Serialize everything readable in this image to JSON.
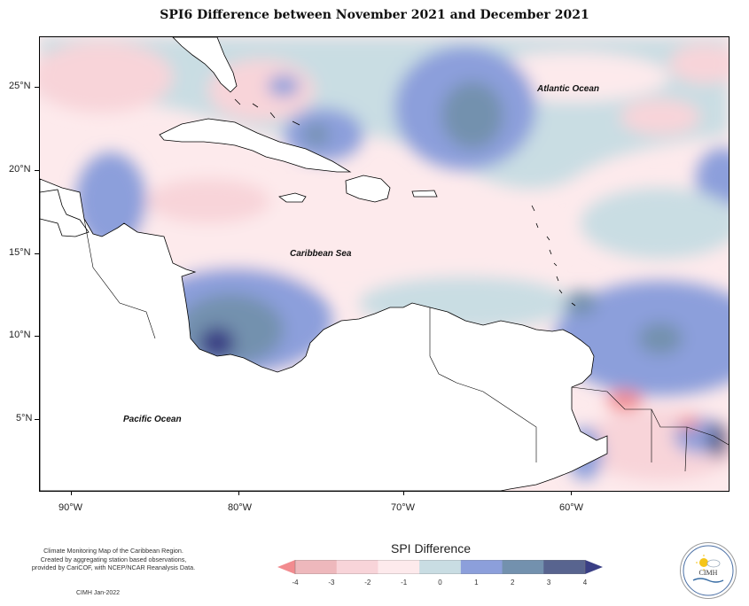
{
  "title": "SPI6 Difference between November 2021 and December 2021",
  "map": {
    "lat_labels": [
      "25°N",
      "20°N",
      "15°N",
      "10°N",
      "5°N"
    ],
    "lon_labels": [
      "90°W",
      "80°W",
      "70°W",
      "60°W"
    ],
    "regions": {
      "atlantic": "Atlantic Ocean",
      "caribbean": "Caribbean Sea",
      "pacific": "Pacific Ocean"
    }
  },
  "legend": {
    "title": "SPI Difference",
    "ticks": [
      "-4",
      "-3",
      "-2",
      "-1",
      "0",
      "1",
      "2",
      "3",
      "4"
    ],
    "colors": [
      "#f28b8f",
      "#eeb8bc",
      "#f8d4d9",
      "#fdeaec",
      "#c9dde3",
      "#8c9fdb",
      "#7391ae",
      "#58648f",
      "#3a3f85"
    ]
  },
  "credits": {
    "lines": [
      "Climate Monitoring Map of the Caribbean Region.",
      "Created by aggregating station based observations,",
      "provided by CariCOF, with NCEP/NCAR Reanalysis Data."
    ],
    "date": "CIMH Jan-2022"
  },
  "logo": {
    "name": "CIMH"
  }
}
